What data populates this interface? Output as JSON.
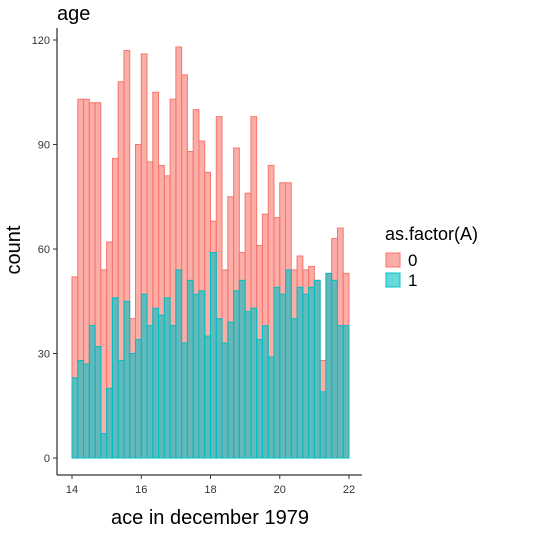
{
  "chart_data": {
    "type": "histogram",
    "title": "age",
    "x_label": "ace in december 1979",
    "y_label": "count",
    "legend_title": "as.factor(A)",
    "bins": [
      14,
      14.167,
      14.333,
      14.5,
      14.667,
      14.833,
      15,
      15.167,
      15.333,
      15.5,
      15.667,
      15.833,
      16,
      16.167,
      16.333,
      16.5,
      16.667,
      16.833,
      17,
      17.167,
      17.333,
      17.5,
      17.667,
      17.833,
      18,
      18.167,
      18.333,
      18.5,
      18.667,
      18.833,
      19,
      19.167,
      19.333,
      19.5,
      19.667,
      19.833,
      20,
      20.167,
      20.333,
      20.5,
      20.667,
      20.833,
      21,
      21.167,
      21.333,
      21.5,
      21.667,
      21.833,
      22
    ],
    "series": [
      {
        "name": "0",
        "color": "#F8766D",
        "values": [
          52,
          103,
          103,
          102,
          102,
          54,
          62,
          86,
          108,
          117,
          40,
          90,
          116,
          85,
          105,
          84,
          81,
          103,
          118,
          110,
          88,
          100,
          91,
          82,
          68,
          98,
          54,
          75,
          89,
          59,
          76,
          98,
          61,
          70,
          84,
          69,
          79,
          79,
          54,
          58,
          54,
          55,
          51,
          28,
          53,
          63,
          66,
          53
        ]
      },
      {
        "name": "1",
        "color": "#00BFC4",
        "values": [
          23,
          28,
          27,
          38,
          32,
          7,
          20,
          46,
          28,
          45,
          30,
          34,
          47,
          38,
          43,
          41,
          46,
          38,
          54,
          33,
          51,
          47,
          48,
          35,
          59,
          40,
          33,
          39,
          48,
          51,
          42,
          43,
          34,
          38,
          29,
          49,
          47,
          54,
          40,
          49,
          47,
          49,
          51,
          19,
          53,
          51,
          38,
          38
        ]
      }
    ],
    "xlim": [
      14,
      22
    ],
    "xticks": [
      14,
      16,
      18,
      20,
      22
    ],
    "ylim": [
      0,
      120
    ],
    "yticks": [
      0,
      30,
      60,
      90,
      120
    ],
    "legend_position": "right",
    "grid": false
  }
}
